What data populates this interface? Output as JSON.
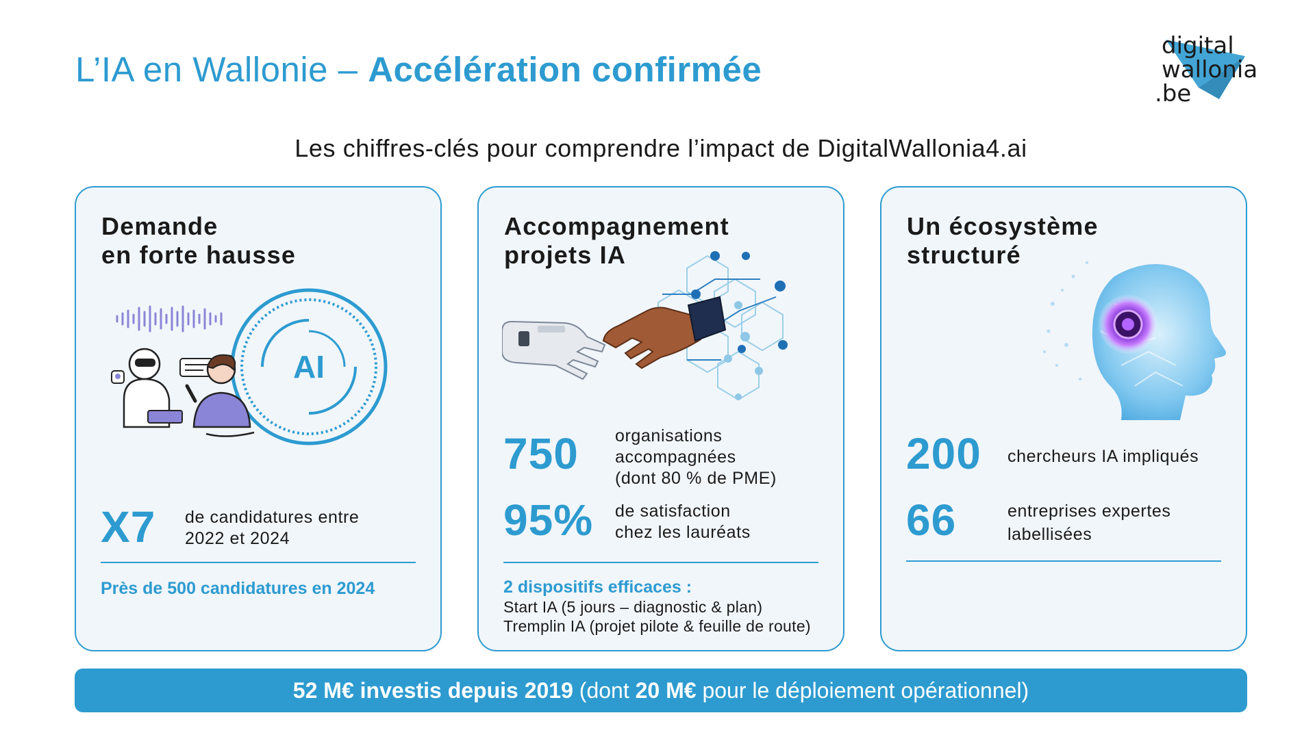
{
  "header": {
    "title_regular": "L’IA en Wallonie – ",
    "title_bold": "Accélération confirmée",
    "subtitle": "Les chiffres-clés pour comprendre l’impact de DigitalWallonia4.ai"
  },
  "logo": {
    "line1": "digital",
    "line2": "wallonia",
    "line3": ".be",
    "accent_color": "#2d9bd0"
  },
  "cards": [
    {
      "title_line1": "Demande",
      "title_line2": "en forte hausse",
      "illustration_text": "AI",
      "stat_value": "X7",
      "stat_desc_line1": "de candidatures entre",
      "stat_desc_line2": "2022 et 2024",
      "footnote": "Près de 500 candidatures en 2024"
    },
    {
      "title_line1": "Accompagnement",
      "title_line2": "projets IA",
      "stat1_value": "750",
      "stat1_desc_line1": "organisations",
      "stat1_desc_line2": "accompagnées",
      "stat1_desc_line3": "(dont 80 % de PME)",
      "stat2_value": "95%",
      "stat2_desc_line1": "de satisfaction",
      "stat2_desc_line2": "chez les lauréats",
      "footnote_title": "2 dispositifs efficaces :",
      "footnote_line1": "Start IA (5 jours – diagnostic & plan)",
      "footnote_line2": "Tremplin IA (projet pilote & feuille de route)"
    },
    {
      "title_line1": "Un écosystème",
      "title_line2": "structuré",
      "stat1_value": "200",
      "stat1_desc_line1": "chercheurs IA impliqués",
      "stat2_value": "66",
      "stat2_desc_line1": "entreprises expertes",
      "stat2_desc_line2": "labellisées"
    }
  ],
  "banner": {
    "bold1": "52 M€ investis depuis 2019",
    "text1": " (dont ",
    "bold2": "20 M€",
    "text2": " pour le déploiement opérationnel)"
  },
  "colors": {
    "accent": "#2d9bd0",
    "card_background": "#f1f6fb",
    "text": "#1a1a1a"
  }
}
